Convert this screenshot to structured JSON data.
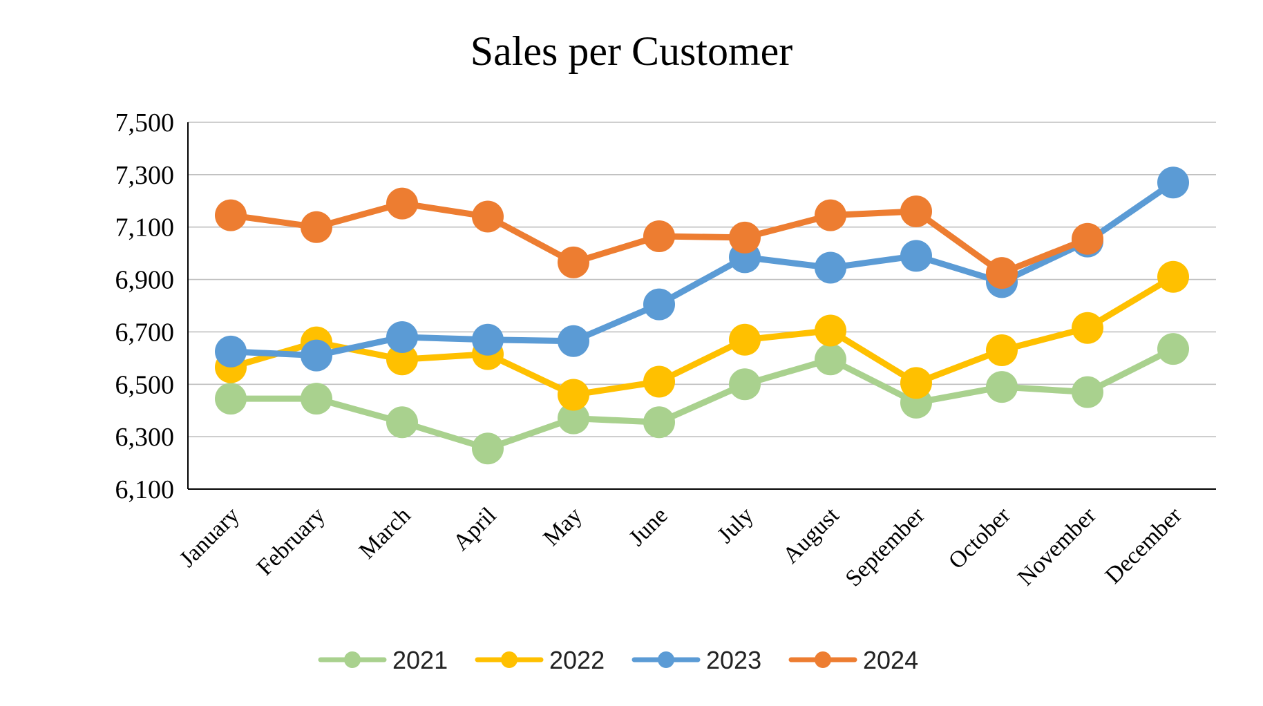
{
  "chart_data": {
    "type": "line",
    "title": "Sales per Customer",
    "xlabel": "",
    "ylabel": "",
    "categories": [
      "January",
      "February",
      "March",
      "April",
      "May",
      "June",
      "July",
      "August",
      "September",
      "October",
      "November",
      "December"
    ],
    "ylim": [
      6100,
      7500
    ],
    "yticks": [
      6100,
      6300,
      6500,
      6700,
      6900,
      7100,
      7300,
      7500
    ],
    "ytick_labels": [
      "6,100",
      "6,300",
      "6,500",
      "6,700",
      "6,900",
      "7,100",
      "7,300",
      "7,500"
    ],
    "grid": "horizontal",
    "legend_position": "bottom",
    "series": [
      {
        "name": "2021",
        "color": "#a9d18e",
        "values": [
          6445,
          6445,
          6355,
          6255,
          6370,
          6355,
          6500,
          6595,
          6430,
          6490,
          6470,
          6635
        ]
      },
      {
        "name": "2022",
        "color": "#ffc000",
        "values": [
          6565,
          6660,
          6595,
          6615,
          6460,
          6510,
          6670,
          6705,
          6505,
          6630,
          6715,
          6910
        ]
      },
      {
        "name": "2023",
        "color": "#5b9bd5",
        "values": [
          6625,
          6610,
          6680,
          6670,
          6665,
          6805,
          6985,
          6945,
          6990,
          6890,
          7045,
          7270
        ]
      },
      {
        "name": "2024",
        "color": "#ed7d31",
        "values": [
          7145,
          7100,
          7190,
          7140,
          6965,
          7065,
          7060,
          7145,
          7160,
          6925,
          7055,
          null
        ]
      }
    ]
  }
}
